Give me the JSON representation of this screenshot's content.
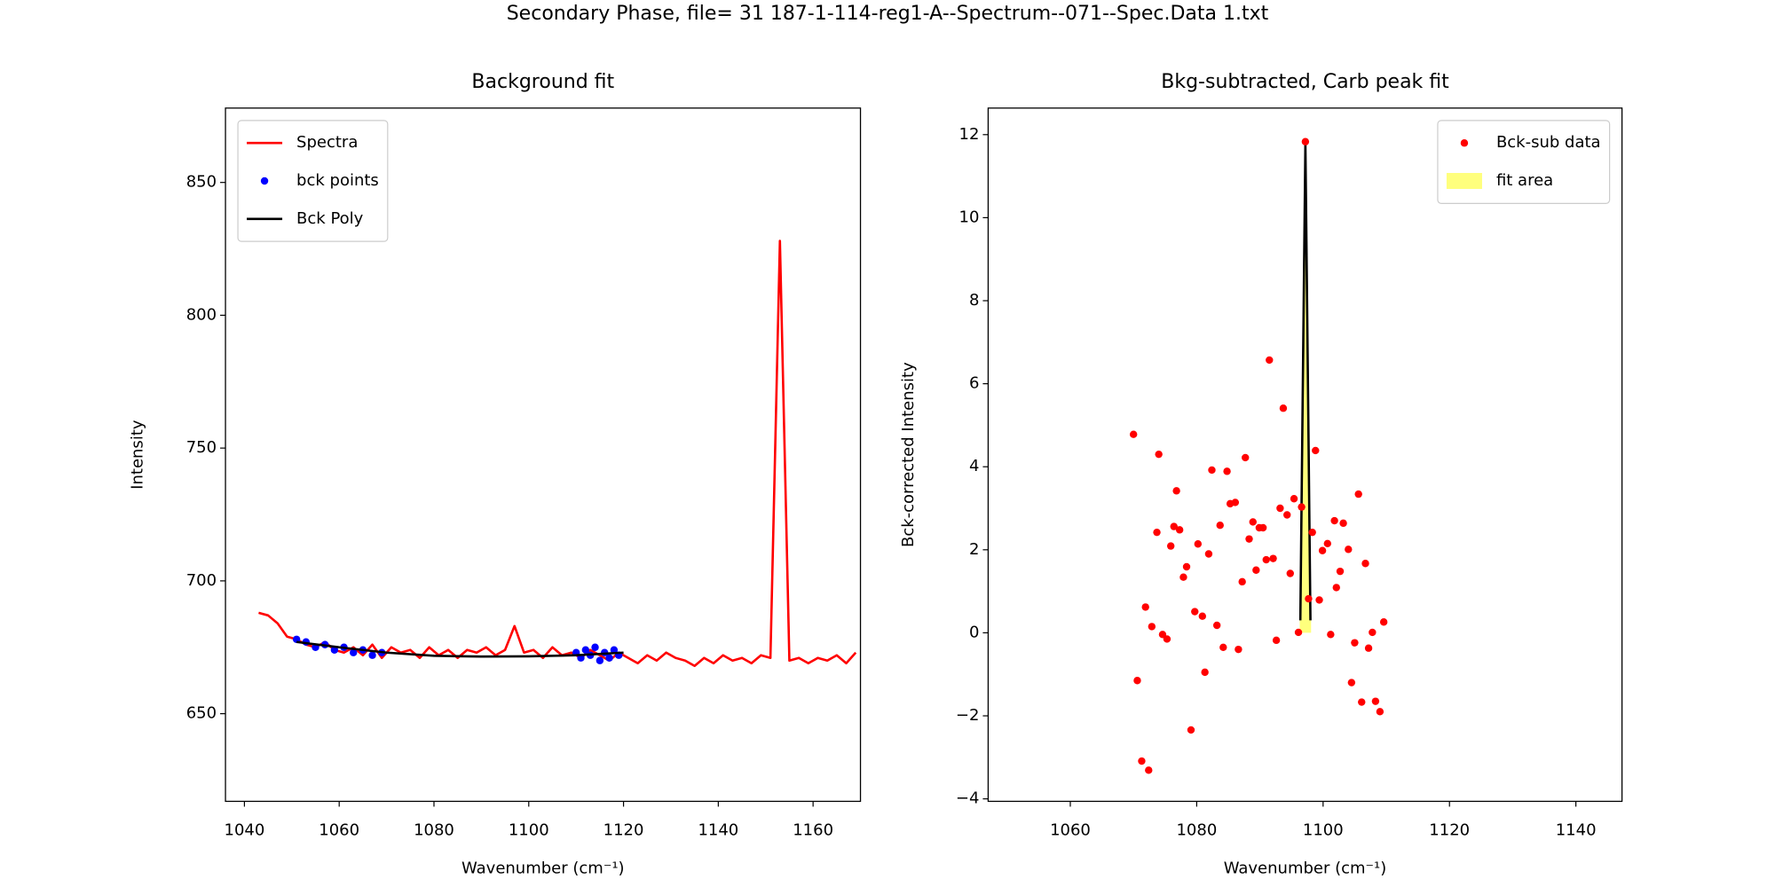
{
  "title": "Secondary Phase, file= 31 187-1-114-reg1-A--Spectrum--071--Spec.Data 1.txt",
  "chart_data": [
    {
      "type": "line",
      "title": "Background fit",
      "x_label": "Wavenumber (cm⁻¹)",
      "y_label": "Intensity",
      "xlim": [
        1036,
        1170
      ],
      "ylim": [
        617,
        878
      ],
      "xticks": [
        1040,
        1060,
        1080,
        1100,
        1120,
        1140,
        1160
      ],
      "yticks": [
        650,
        700,
        750,
        800,
        850
      ],
      "legend": "upper left",
      "series": [
        {
          "name": "Spectra",
          "type": "line",
          "color": "#ff0000",
          "x": [
            1043,
            1045,
            1047,
            1049,
            1051,
            1053,
            1055,
            1057,
            1059,
            1061,
            1063,
            1065,
            1067,
            1069,
            1071,
            1073,
            1075,
            1077,
            1079,
            1081,
            1083,
            1085,
            1087,
            1089,
            1091,
            1093,
            1095,
            1097,
            1099,
            1101,
            1103,
            1105,
            1107,
            1109,
            1111,
            1113,
            1115,
            1117,
            1119,
            1121,
            1123,
            1125,
            1127,
            1129,
            1131,
            1133,
            1135,
            1137,
            1139,
            1141,
            1143,
            1145,
            1147,
            1149,
            1151,
            1153,
            1155,
            1157,
            1159,
            1161,
            1163,
            1165,
            1167,
            1169
          ],
          "values": [
            688,
            687,
            684,
            679,
            678,
            676,
            675,
            677,
            674,
            673,
            675,
            672,
            676,
            671,
            675,
            673,
            674,
            671,
            675,
            672,
            674,
            671,
            674,
            673,
            675,
            672,
            674,
            683,
            673,
            674,
            671,
            675,
            672,
            673,
            671,
            674,
            672,
            670,
            673,
            671,
            669,
            672,
            670,
            673,
            671,
            670,
            668,
            671,
            669,
            672,
            670,
            671,
            669,
            672,
            671,
            828,
            670,
            671,
            669,
            671,
            670,
            672,
            669,
            673
          ]
        },
        {
          "name": "bck points",
          "type": "scatter",
          "color": "#0000ff",
          "x": [
            1051,
            1053,
            1055,
            1057,
            1059,
            1061,
            1063,
            1065,
            1067,
            1069,
            1110,
            1111,
            1112,
            1113,
            1114,
            1115,
            1116,
            1117,
            1118,
            1119
          ],
          "values": [
            678,
            677,
            675,
            676,
            674,
            675,
            673,
            674,
            672,
            673,
            673,
            671,
            674,
            672,
            675,
            670,
            673,
            671,
            674,
            672
          ]
        },
        {
          "name": "Bck Poly",
          "type": "line",
          "color": "#000000",
          "x": [
            1051,
            1060,
            1070,
            1080,
            1090,
            1100,
            1110,
            1120
          ],
          "values": [
            677,
            675,
            673,
            671.8,
            671.5,
            671.6,
            672,
            673
          ]
        }
      ]
    },
    {
      "type": "scatter",
      "title": "Bkg-subtracted, Carb peak fit",
      "x_label": "Wavenumber (cm⁻¹)",
      "y_label": "Bck-corrected Intensity",
      "xlim": [
        1047,
        1147.3
      ],
      "ylim": [
        -4.06,
        12.64
      ],
      "xticks": [
        1060,
        1080,
        1100,
        1120,
        1140
      ],
      "yticks": [
        {
          "value": -4,
          "label": "−4"
        },
        {
          "value": -2,
          "label": "−2"
        },
        0,
        2,
        4,
        6,
        8,
        10,
        12
      ],
      "legend": "upper right",
      "series": [
        {
          "name": "Bck-sub data",
          "type": "scatter",
          "color": "#ff0000",
          "x": [
            1070.0,
            1070.6,
            1071.3,
            1071.9,
            1072.4,
            1072.9,
            1073.7,
            1074.0,
            1074.6,
            1075.3,
            1075.9,
            1076.4,
            1076.8,
            1077.3,
            1077.9,
            1078.4,
            1079.1,
            1079.7,
            1080.2,
            1080.9,
            1081.3,
            1081.9,
            1082.4,
            1083.2,
            1083.7,
            1084.2,
            1084.8,
            1085.3,
            1086.1,
            1086.6,
            1087.2,
            1087.7,
            1088.3,
            1088.9,
            1089.4,
            1089.9,
            1090.5,
            1091.0,
            1091.5,
            1092.1,
            1092.6,
            1093.2,
            1093.7,
            1094.3,
            1094.8,
            1095.4,
            1096.1,
            1096.6,
            1097.2,
            1097.7,
            1098.3,
            1098.8,
            1099.4,
            1099.9,
            1100.7,
            1101.2,
            1101.8,
            1102.1,
            1102.7,
            1103.2,
            1104.0,
            1104.5,
            1105.0,
            1105.6,
            1106.1,
            1106.7,
            1107.2,
            1107.8,
            1108.3,
            1109.0,
            1109.6
          ],
          "values": [
            4.78,
            -1.15,
            -3.09,
            0.62,
            -3.31,
            0.15,
            2.42,
            4.3,
            -0.04,
            -0.15,
            2.09,
            2.56,
            3.42,
            2.48,
            1.34,
            1.59,
            -2.34,
            0.51,
            2.14,
            0.4,
            -0.95,
            1.9,
            3.92,
            0.18,
            2.59,
            -0.35,
            3.89,
            3.11,
            3.14,
            -0.4,
            1.23,
            4.22,
            2.26,
            2.67,
            1.51,
            2.53,
            2.53,
            1.76,
            6.57,
            1.79,
            -0.18,
            3.0,
            5.41,
            2.84,
            1.43,
            3.23,
            0.01,
            3.03,
            11.83,
            0.82,
            2.42,
            4.39,
            0.79,
            1.98,
            2.15,
            -0.04,
            2.7,
            1.09,
            1.48,
            2.64,
            2.01,
            -1.2,
            -0.24,
            3.34,
            -1.67,
            1.67,
            -0.37,
            0.01,
            -1.65,
            -1.9,
            0.26
          ]
        },
        {
          "name": "fit area",
          "type": "area",
          "color": "#ffff66",
          "x": [
            1096.3,
            1097.2,
            1098.1
          ],
          "values": [
            0.3,
            11.8,
            0.3
          ]
        },
        {
          "type": "line",
          "color": "#000000",
          "x": [
            1096.4,
            1097.2,
            1098.0
          ],
          "values": [
            0.3,
            11.8,
            0.3
          ]
        }
      ]
    }
  ]
}
